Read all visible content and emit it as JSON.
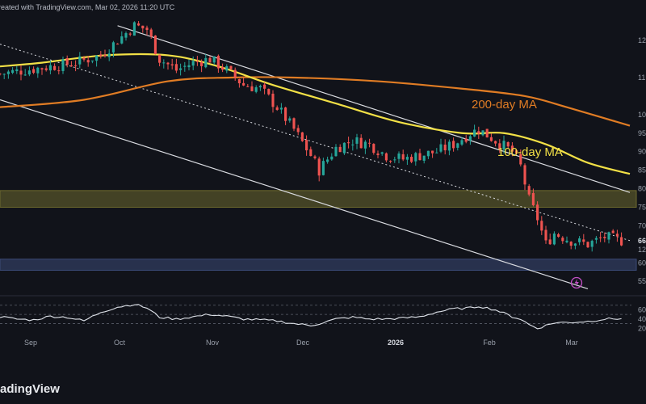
{
  "header_text": "reated with TradingView.com, Mar 02, 2026 11:20 UTC",
  "logo_text": "adingView",
  "colors": {
    "background": "#11131a",
    "panel_divider": "#2a2e39",
    "up": "#26a69a",
    "down": "#ef5350",
    "ma200": "#e07c24",
    "ma100": "#f2e046",
    "channel": "#d9dbe0",
    "supply_zone": "#6e6a2f",
    "demand_zone": "#3c4b78",
    "rsi_line": "#dfe3ea",
    "alert": "#c651c8"
  },
  "chart_data": [
    {
      "type": "candlestick",
      "x_ticks": [
        "Sep",
        "Oct",
        "Nov",
        "Dec",
        "2026",
        "Feb",
        "Mar"
      ],
      "y_ticks": [
        "12",
        "11",
        "10",
        "95",
        "90",
        "85",
        "80",
        "75",
        "70",
        "66",
        "60",
        "55"
      ],
      "y_ticks_note": "Right-axis labels are cut off by the image edge; only leading digits are visible.",
      "current_price_label": "66",
      "current_price_sublabel": "12",
      "ylim": [
        52,
        127
      ],
      "annotations": [
        {
          "text": "200-day MA",
          "color": "#e07c24"
        },
        {
          "text": "100-day MA",
          "color": "#f2e046"
        }
      ],
      "candles_anchor_closes": [
        [
          0,
          111
        ],
        [
          6,
          112
        ],
        [
          12,
          113
        ],
        [
          18,
          114
        ],
        [
          24,
          116
        ],
        [
          28,
          120
        ],
        [
          32,
          124
        ],
        [
          35,
          123
        ],
        [
          38,
          115
        ],
        [
          42,
          112
        ],
        [
          46,
          114
        ],
        [
          50,
          115
        ],
        [
          54,
          112
        ],
        [
          58,
          108
        ],
        [
          62,
          107
        ],
        [
          66,
          102
        ],
        [
          70,
          96
        ],
        [
          74,
          89
        ],
        [
          76,
          85
        ],
        [
          80,
          91
        ],
        [
          84,
          93
        ],
        [
          88,
          92
        ],
        [
          92,
          89
        ],
        [
          96,
          88
        ],
        [
          100,
          89
        ],
        [
          104,
          90
        ],
        [
          108,
          92
        ],
        [
          112,
          95
        ],
        [
          114,
          96
        ],
        [
          118,
          93
        ],
        [
          122,
          90
        ],
        [
          124,
          86
        ],
        [
          126,
          77
        ],
        [
          128,
          72
        ],
        [
          130,
          65
        ],
        [
          132,
          68
        ],
        [
          136,
          66
        ],
        [
          140,
          65
        ],
        [
          144,
          67
        ],
        [
          148,
          66
        ]
      ],
      "series": [
        {
          "name": "200-day MA",
          "color": "#e07c24",
          "points": [
            [
              0,
              102
            ],
            [
              20,
              104
            ],
            [
              40,
              109
            ],
            [
              55,
              110
            ],
            [
              70,
              110
            ],
            [
              90,
              109
            ],
            [
              110,
              107
            ],
            [
              125,
              105
            ],
            [
              135,
              102
            ],
            [
              150,
              97
            ]
          ]
        },
        {
          "name": "100-day MA",
          "color": "#f2e046",
          "points": [
            [
              0,
              113
            ],
            [
              10,
              114
            ],
            [
              25,
              116
            ],
            [
              40,
              116
            ],
            [
              52,
              113
            ],
            [
              65,
              108
            ],
            [
              80,
              103
            ],
            [
              95,
              98
            ],
            [
              110,
              95
            ],
            [
              120,
              95
            ],
            [
              130,
              92
            ],
            [
              140,
              87
            ],
            [
              150,
              84
            ]
          ]
        }
      ],
      "zones": [
        {
          "name": "supply",
          "y_range": [
            75,
            79.5
          ],
          "color": "#6e6a2f"
        },
        {
          "name": "demand",
          "y_range": [
            58,
            61
          ],
          "color": "#3c4b78"
        }
      ],
      "channel_lines": [
        {
          "style": "solid",
          "points": [
            [
              28,
              124
            ],
            [
              150,
              79
            ]
          ]
        },
        {
          "style": "dotted",
          "points": [
            [
              0,
              119
            ],
            [
              150,
              66
            ]
          ]
        },
        {
          "style": "solid",
          "points": [
            [
              0,
              104
            ],
            [
              140,
              53
            ]
          ]
        }
      ]
    },
    {
      "type": "line",
      "name": "RSI",
      "y_ticks": [
        "60",
        "40",
        "20"
      ],
      "ylim": [
        10,
        80
      ],
      "reference_lines": [
        70,
        50,
        30
      ],
      "values": [
        [
          0,
          45
        ],
        [
          4,
          40
        ],
        [
          8,
          38
        ],
        [
          12,
          46
        ],
        [
          16,
          44
        ],
        [
          20,
          36
        ],
        [
          24,
          55
        ],
        [
          28,
          66
        ],
        [
          32,
          72
        ],
        [
          35,
          64
        ],
        [
          38,
          44
        ],
        [
          42,
          40
        ],
        [
          46,
          45
        ],
        [
          50,
          50
        ],
        [
          54,
          46
        ],
        [
          58,
          40
        ],
        [
          62,
          38
        ],
        [
          66,
          36
        ],
        [
          70,
          30
        ],
        [
          74,
          26
        ],
        [
          76,
          30
        ],
        [
          80,
          40
        ],
        [
          84,
          44
        ],
        [
          88,
          40
        ],
        [
          92,
          40
        ],
        [
          96,
          42
        ],
        [
          100,
          45
        ],
        [
          104,
          55
        ],
        [
          108,
          62
        ],
        [
          112,
          64
        ],
        [
          114,
          68
        ],
        [
          118,
          60
        ],
        [
          122,
          45
        ],
        [
          124,
          40
        ],
        [
          126,
          28
        ],
        [
          128,
          20
        ],
        [
          130,
          26
        ],
        [
          132,
          32
        ],
        [
          136,
          33
        ],
        [
          140,
          35
        ],
        [
          144,
          40
        ],
        [
          148,
          41
        ]
      ]
    }
  ]
}
